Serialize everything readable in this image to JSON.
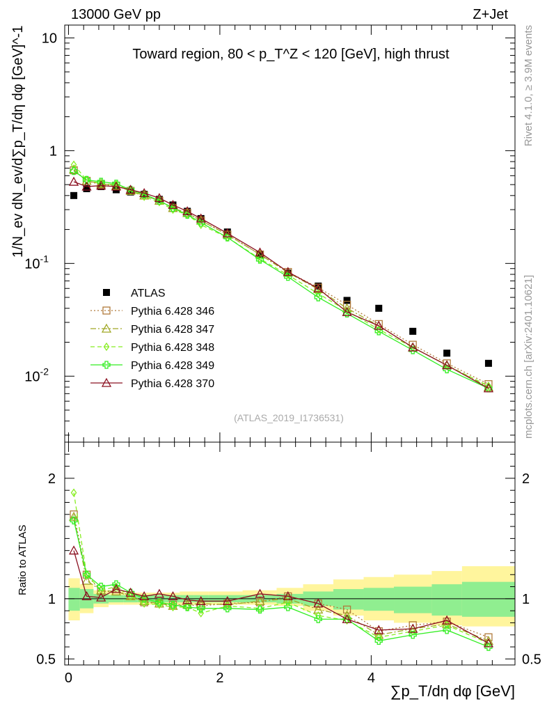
{
  "header": {
    "energy": "13000 GeV pp",
    "process": "Z+Jet"
  },
  "side": {
    "rivet": "Rivet 4.1.0, ≥ 3.9M events",
    "mcplots": "mcplots.cern.ch [arXiv:2401.10621]"
  },
  "watermark": "(ATLAS_2019_I1736531)",
  "colors": {
    "atlas": "#000000",
    "p346": "#b07a3a",
    "p347": "#a0a825",
    "p348": "#88ee22",
    "p349": "#33ee22",
    "p370": "#8b1020",
    "band_mc": "#fff59d",
    "band_data": "#90ee90"
  },
  "chart_data": [
    {
      "type": "scatter",
      "panel": "main",
      "title": "Toward region, 80 < p_T^Z < 120 [GeV], high thrust",
      "ylabel": "1/N_ev dN_ev/d∑p_T/dη dφ [GeV]^-1",
      "yscale": "log",
      "ylim": [
        0.0026,
        13
      ],
      "xlim": [
        -0.05,
        5.9
      ],
      "y_ticks": [
        "10",
        "1",
        "10^-1",
        "10^-2"
      ],
      "legend": [
        "ATLAS",
        "Pythia 6.428 346",
        "Pythia 6.428 347",
        "Pythia 6.428 348",
        "Pythia 6.428 349",
        "Pythia 6.428 370"
      ],
      "x": [
        0.07,
        0.24,
        0.43,
        0.63,
        0.82,
        1.0,
        1.2,
        1.38,
        1.57,
        1.75,
        2.1,
        2.53,
        2.9,
        3.3,
        3.68,
        4.1,
        4.55,
        5.0,
        5.55
      ],
      "series": [
        {
          "name": "ATLAS",
          "marker": "square",
          "values": [
            0.4,
            0.46,
            0.48,
            0.45,
            0.43,
            0.41,
            0.37,
            0.33,
            0.29,
            0.25,
            0.19,
            0.12,
            0.082,
            0.063,
            0.047,
            0.04,
            0.025,
            0.016,
            0.013
          ]
        },
        {
          "name": "Pythia 6.428 346",
          "marker": "open-square",
          "values": [
            0.67,
            0.54,
            0.5,
            0.49,
            0.44,
            0.4,
            0.36,
            0.31,
            0.28,
            0.24,
            0.18,
            0.12,
            0.084,
            0.061,
            0.043,
            0.029,
            0.019,
            0.013,
            0.0085
          ]
        },
        {
          "name": "Pythia 6.428 347",
          "marker": "open-triangle",
          "values": [
            0.68,
            0.54,
            0.51,
            0.49,
            0.44,
            0.4,
            0.36,
            0.31,
            0.28,
            0.24,
            0.18,
            0.12,
            0.083,
            0.059,
            0.04,
            0.028,
            0.018,
            0.0125,
            0.008
          ]
        },
        {
          "name": "Pythia 6.428 348",
          "marker": "open-diamond",
          "values": [
            0.75,
            0.55,
            0.51,
            0.5,
            0.44,
            0.39,
            0.35,
            0.3,
            0.27,
            0.22,
            0.17,
            0.11,
            0.079,
            0.054,
            0.038,
            0.026,
            0.018,
            0.0125,
            0.0082
          ]
        },
        {
          "name": "Pythia 6.428 349",
          "marker": "open-cross",
          "values": [
            0.66,
            0.55,
            0.53,
            0.51,
            0.45,
            0.41,
            0.36,
            0.31,
            0.27,
            0.23,
            0.17,
            0.108,
            0.076,
            0.05,
            0.036,
            0.025,
            0.017,
            0.0115,
            0.0078
          ]
        },
        {
          "name": "Pythia 6.428 370",
          "marker": "open-triangle",
          "values": [
            0.53,
            0.48,
            0.49,
            0.48,
            0.45,
            0.42,
            0.38,
            0.33,
            0.29,
            0.25,
            0.185,
            0.125,
            0.084,
            0.06,
            0.037,
            0.028,
            0.018,
            0.0125,
            0.0078
          ]
        }
      ]
    },
    {
      "type": "line",
      "panel": "ratio",
      "ylabel": "Ratio to ATLAS",
      "xlabel": "∑p_T/dη dφ [GeV]",
      "ylim": [
        0.45,
        2.3
      ],
      "xlim": [
        -0.05,
        5.9
      ],
      "y_ticks": [
        "2",
        "1",
        "0.5"
      ],
      "x_ticks": [
        "0",
        "2",
        "4"
      ],
      "x": [
        0.07,
        0.24,
        0.43,
        0.63,
        0.82,
        1.0,
        1.2,
        1.38,
        1.57,
        1.75,
        2.1,
        2.53,
        2.9,
        3.3,
        3.68,
        4.1,
        4.55,
        5.0,
        5.55
      ],
      "series": [
        {
          "name": "Pythia 6.428 346",
          "values": [
            1.7,
            1.2,
            1.06,
            1.06,
            1.03,
            0.97,
            0.96,
            0.95,
            0.95,
            0.94,
            0.96,
            0.97,
            1.02,
            0.96,
            0.91,
            0.73,
            0.78,
            0.81,
            0.68
          ]
        },
        {
          "name": "Pythia 6.428 347",
          "values": [
            1.68,
            1.15,
            1.07,
            1.06,
            1.02,
            0.98,
            0.96,
            0.94,
            0.95,
            0.96,
            0.95,
            0.98,
            1.0,
            0.91,
            0.86,
            0.7,
            0.75,
            0.79,
            0.65
          ]
        },
        {
          "name": "Pythia 6.428 348",
          "values": [
            1.88,
            1.2,
            1.07,
            1.1,
            1.02,
            0.96,
            0.95,
            0.93,
            0.93,
            0.88,
            0.94,
            0.92,
            0.97,
            0.86,
            0.82,
            0.68,
            0.73,
            0.78,
            0.63
          ]
        },
        {
          "name": "Pythia 6.428 349",
          "values": [
            1.65,
            1.2,
            1.1,
            1.12,
            1.05,
            1.0,
            0.97,
            0.95,
            0.93,
            0.92,
            0.92,
            0.91,
            0.93,
            0.83,
            0.83,
            0.65,
            0.7,
            0.74,
            0.6
          ]
        },
        {
          "name": "Pythia 6.428 370",
          "values": [
            1.4,
            1.02,
            1.01,
            1.08,
            1.05,
            1.02,
            1.04,
            1.02,
            0.99,
            0.98,
            0.98,
            1.04,
            1.02,
            0.96,
            0.83,
            0.74,
            0.75,
            0.82,
            0.63
          ]
        }
      ],
      "bands": {
        "mc_edges": [
          0.0,
          0.15,
          0.33,
          0.53,
          0.73,
          0.91,
          1.1,
          1.29,
          1.47,
          1.66,
          1.85,
          2.3,
          2.75,
          3.1,
          3.5,
          3.9,
          4.3,
          4.8,
          5.2,
          5.9
        ],
        "mc_low": [
          0.82,
          0.88,
          0.93,
          0.95,
          0.95,
          0.95,
          0.95,
          0.95,
          0.95,
          0.95,
          0.95,
          0.95,
          0.94,
          0.9,
          0.86,
          0.82,
          0.8,
          0.78,
          0.77
        ],
        "mc_high": [
          1.17,
          1.12,
          1.07,
          1.06,
          1.05,
          1.05,
          1.05,
          1.05,
          1.06,
          1.06,
          1.06,
          1.07,
          1.09,
          1.12,
          1.16,
          1.18,
          1.2,
          1.23,
          1.27
        ],
        "data_low": [
          0.9,
          0.92,
          0.96,
          0.97,
          0.97,
          0.97,
          0.97,
          0.97,
          0.97,
          0.97,
          0.97,
          0.97,
          0.96,
          0.94,
          0.91,
          0.9,
          0.88,
          0.86,
          0.85
        ],
        "data_high": [
          1.09,
          1.08,
          1.04,
          1.03,
          1.03,
          1.03,
          1.03,
          1.03,
          1.03,
          1.03,
          1.03,
          1.03,
          1.04,
          1.06,
          1.08,
          1.09,
          1.1,
          1.12,
          1.14
        ]
      }
    }
  ]
}
